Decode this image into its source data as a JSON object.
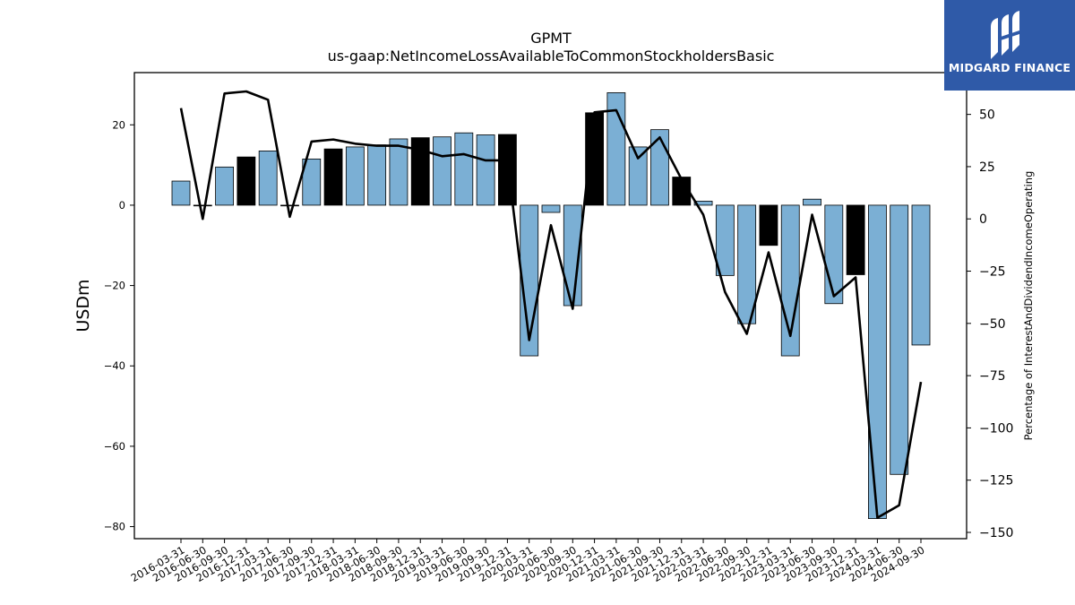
{
  "chart_data": {
    "type": "bar",
    "title": "GPMT",
    "subtitle": "us-gaap:NetIncomeLossAvailableToCommonStockholdersBasic",
    "ylabel": "USDm",
    "y2label": "Percentage of InterestAndDividendIncomeOperating",
    "ylim": [
      -83,
      33
    ],
    "y2lim": [
      -153,
      70
    ],
    "yticks": [
      20,
      0,
      -20,
      -40,
      -60,
      -80
    ],
    "y2ticks": [
      50,
      25,
      0,
      -25,
      -50,
      -75,
      -100,
      -125,
      -150
    ],
    "grid": false,
    "categories": [
      "2016-03-31",
      "2016-06-30",
      "2016-09-30",
      "2016-12-31",
      "2017-03-31",
      "2017-06-30",
      "2017-09-30",
      "2017-12-31",
      "2018-03-31",
      "2018-06-30",
      "2018-09-30",
      "2018-12-31",
      "2019-03-31",
      "2019-06-30",
      "2019-09-30",
      "2019-12-31",
      "2020-03-31",
      "2020-06-30",
      "2020-09-30",
      "2020-12-31",
      "2021-03-31",
      "2021-06-30",
      "2021-09-30",
      "2021-12-31",
      "2022-03-31",
      "2022-06-30",
      "2022-09-30",
      "2022-12-31",
      "2023-03-31",
      "2023-06-30",
      "2023-09-30",
      "2023-12-31",
      "2024-03-31",
      "2024-06-30",
      "2024-09-30"
    ],
    "series": [
      {
        "type": "bar",
        "values": [
          6.0,
          0.0,
          9.5,
          12.0,
          13.5,
          0.0,
          11.5,
          14.0,
          14.5,
          15.0,
          16.5,
          16.8,
          17.0,
          18.0,
          17.5,
          17.6,
          -37.5,
          -1.8,
          -25.0,
          23.0,
          28.0,
          14.5,
          18.8,
          7.0,
          1.0,
          -17.5,
          -29.5,
          -10.0,
          -37.5,
          1.5,
          -24.5,
          -17.3,
          -78.0,
          -67.0,
          -34.8
        ],
        "highlight": [
          false,
          false,
          false,
          true,
          false,
          false,
          false,
          true,
          false,
          false,
          false,
          true,
          false,
          false,
          false,
          true,
          false,
          false,
          false,
          true,
          false,
          false,
          false,
          true,
          false,
          false,
          false,
          true,
          false,
          false,
          false,
          true,
          false,
          false,
          false
        ]
      },
      {
        "type": "line",
        "axis": "right",
        "values": [
          53,
          0,
          60,
          61,
          57,
          1,
          37,
          38,
          36,
          35,
          35,
          33,
          30,
          31,
          28,
          28,
          -58,
          -3,
          -43,
          51,
          52,
          29,
          39,
          19,
          2,
          -35,
          -55,
          -16,
          -56,
          2,
          -37,
          -28,
          -143,
          -137,
          -78
        ]
      }
    ],
    "colors": {
      "bar": "#7bafd4",
      "highlight_bar": "#000000",
      "line": "#000000",
      "bar_edge": "#000000"
    }
  },
  "logo": {
    "text": "MIDGARD FINANCE",
    "icon": "midgard-logo-icon",
    "background": "#2f5aa8"
  }
}
